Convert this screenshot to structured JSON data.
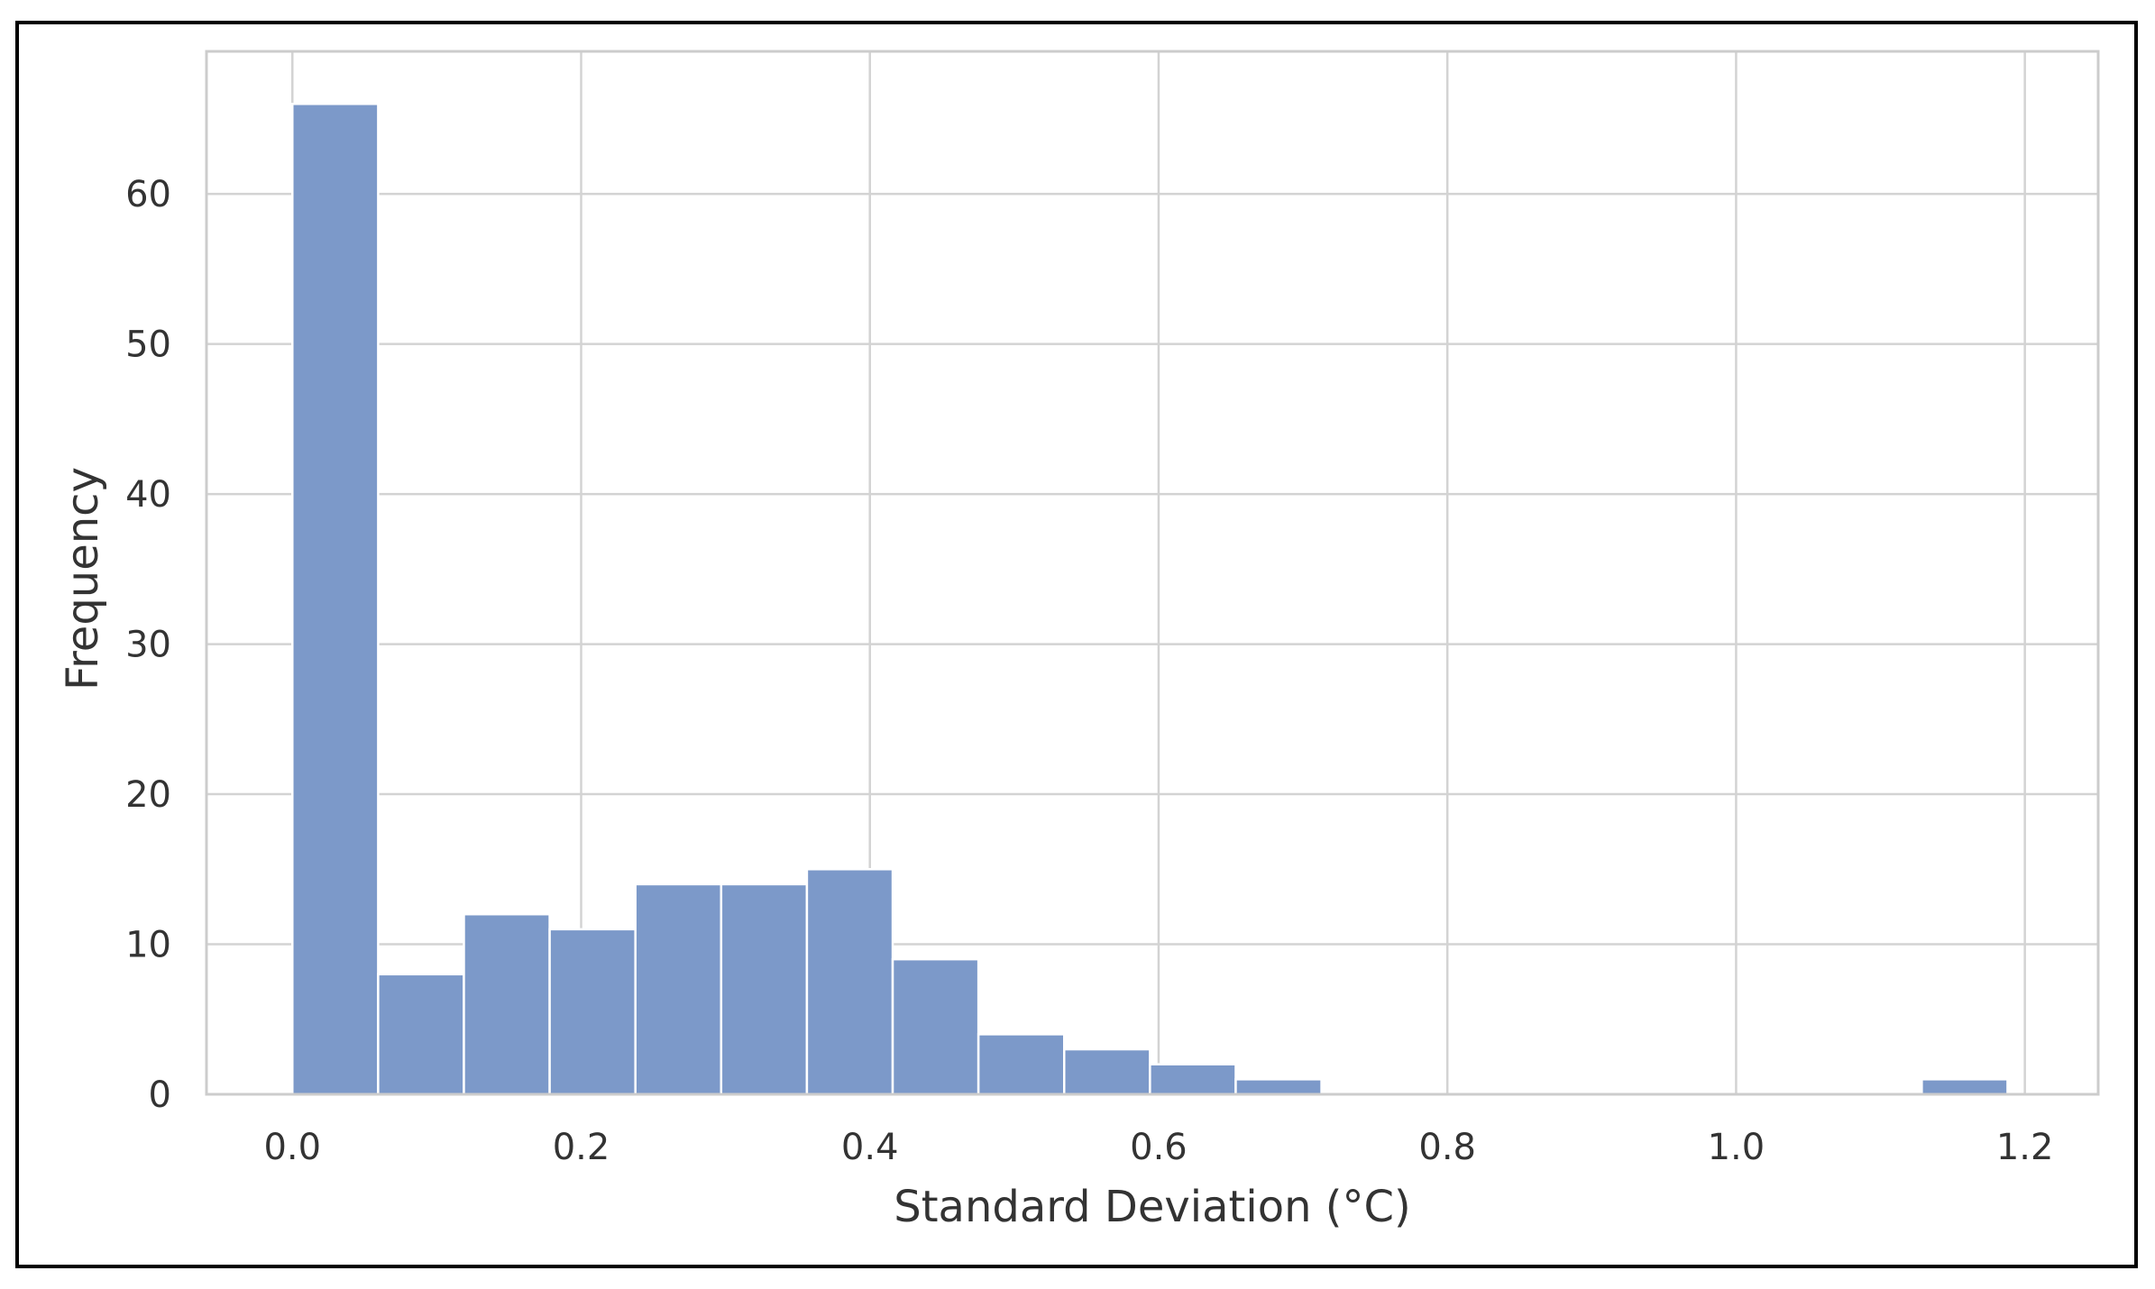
{
  "chart_data": {
    "type": "bar",
    "title": "",
    "xlabel": "Standard Deviation (°C)",
    "ylabel": "Frequency",
    "xlim": [
      -0.0595,
      1.2508
    ],
    "ylim": [
      0,
      69.5
    ],
    "grid": true,
    "bin_edges": [
      0.0,
      0.0594,
      0.1188,
      0.1782,
      0.2376,
      0.297,
      0.3564,
      0.4158,
      0.4752,
      0.5346,
      0.594,
      0.6534,
      0.7128,
      0.7722,
      0.8316,
      0.891,
      0.9504,
      1.0098,
      1.0692,
      1.1286,
      1.188
    ],
    "values": [
      66,
      8,
      12,
      11,
      14,
      14,
      15,
      9,
      4,
      3,
      2,
      1,
      0,
      0,
      0,
      0,
      0,
      0,
      0,
      1
    ],
    "x_ticks": [
      0.0,
      0.2,
      0.4,
      0.6,
      0.8,
      1.0,
      1.2
    ],
    "x_tick_labels": [
      "0.0",
      "0.2",
      "0.4",
      "0.6",
      "0.8",
      "1.0",
      "1.2"
    ],
    "y_ticks": [
      0,
      10,
      20,
      30,
      40,
      50,
      60
    ],
    "y_tick_labels": [
      "0",
      "10",
      "20",
      "30",
      "40",
      "50",
      "60"
    ],
    "colors": {
      "bar_fill": "#7c99c9",
      "bar_edge": "#ffffff",
      "grid": "#d3d3d3",
      "axes_border": "#cccccc",
      "text": "#333333"
    }
  }
}
